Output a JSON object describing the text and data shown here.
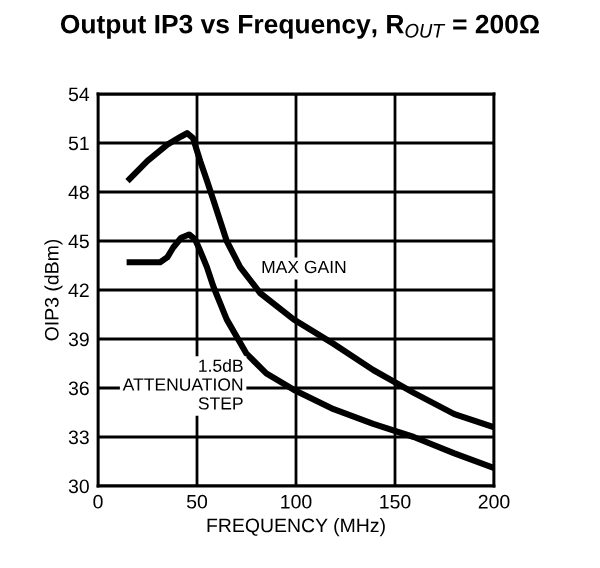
{
  "chart_data": {
    "type": "line",
    "title": "Output IP3 vs Frequency, R$_{OUT}$ = 200Ω",
    "xlabel": "FREQUENCY (MHz)",
    "ylabel": "OIP3 (dBm)",
    "xlim": [
      0,
      200
    ],
    "xticks": [
      0,
      50,
      100,
      150,
      200
    ],
    "ylim": [
      30,
      54
    ],
    "yticks": [
      30,
      33,
      36,
      39,
      42,
      45,
      48,
      51,
      54
    ],
    "grid": true,
    "line_style": "solid",
    "series": [
      {
        "name": "MAX GAIN",
        "color": "#000000",
        "x": [
          16,
          25,
          35,
          42,
          45,
          48,
          51.6,
          55,
          58.3,
          65,
          71.8,
          82,
          98.8,
          119,
          139,
          159.5,
          180,
          200
        ],
        "values": [
          48.8,
          49.9,
          50.9,
          51.4,
          51.6,
          51.3,
          49.9,
          48.7,
          47.5,
          45.0,
          43.4,
          41.8,
          40.2,
          38.7,
          37.1,
          35.7,
          34.4,
          33.6
        ]
      },
      {
        "name": "1.5dB\nATTENUATION\nSTEP",
        "color": "#000000",
        "x": [
          16,
          25,
          31.4,
          35,
          38,
          42,
          46,
          49,
          51.6,
          55,
          58.3,
          65,
          75,
          85,
          98.8,
          119,
          139,
          159.5,
          180,
          200
        ],
        "values": [
          43.7,
          43.7,
          43.7,
          44.0,
          44.6,
          45.2,
          45.4,
          45.1,
          44.4,
          43.4,
          42.2,
          40.2,
          38.1,
          36.9,
          35.9,
          34.7,
          33.8,
          33.0,
          32.0,
          31.1
        ]
      }
    ]
  }
}
